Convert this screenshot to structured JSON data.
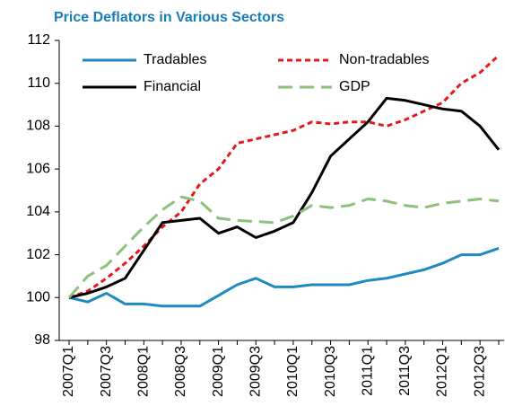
{
  "chart_data": {
    "type": "line",
    "title": "Price Deflators in Various Sectors",
    "categories": [
      "2007Q1",
      null,
      "2007Q3",
      null,
      "2008Q1",
      null,
      "2008Q3",
      null,
      "2009Q1",
      null,
      "2009Q3",
      null,
      "2010Q1",
      null,
      "2010Q3",
      null,
      "2011Q1",
      null,
      "2011Q3",
      null,
      "2012Q1",
      null,
      "2012Q3",
      null
    ],
    "series": [
      {
        "name": "Tradables",
        "color": "#1f8ac0",
        "line_style": "solid",
        "values": [
          100,
          99.8,
          100.2,
          99.7,
          99.7,
          99.6,
          99.6,
          99.6,
          100.1,
          100.6,
          100.9,
          100.5,
          100.5,
          100.6,
          100.6,
          100.6,
          100.8,
          100.9,
          101.1,
          101.3,
          101.6,
          102.0,
          102.0,
          102.3
        ]
      },
      {
        "name": "Non-tradables",
        "color": "#e31a1c",
        "line_style": "dashed",
        "values": [
          100,
          100.3,
          100.9,
          101.6,
          102.4,
          103.3,
          104.0,
          105.3,
          106.0,
          107.2,
          107.4,
          107.6,
          107.8,
          108.2,
          108.1,
          108.2,
          108.2,
          108.0,
          108.3,
          108.7,
          109.1,
          110.0,
          110.5,
          111.3
        ]
      },
      {
        "name": "Financial",
        "color": "#000000",
        "line_style": "solid",
        "values": [
          100,
          100.2,
          100.5,
          100.9,
          102.2,
          103.5,
          103.6,
          103.7,
          103.0,
          103.3,
          102.8,
          103.1,
          103.5,
          104.9,
          106.6,
          107.4,
          108.2,
          109.3,
          109.2,
          109.0,
          108.8,
          108.7,
          108.0,
          106.9
        ]
      },
      {
        "name": "GDP",
        "color": "#8dc07a",
        "line_style": "long-dashed",
        "values": [
          100,
          101.0,
          101.5,
          102.4,
          103.3,
          104.1,
          104.7,
          104.5,
          103.7,
          103.6,
          103.55,
          103.5,
          103.8,
          104.3,
          104.2,
          104.3,
          104.6,
          104.5,
          104.3,
          104.2,
          104.4,
          104.5,
          104.6,
          104.5
        ]
      }
    ],
    "ylim": [
      98,
      112
    ],
    "yticks": [
      98,
      100,
      102,
      104,
      106,
      108,
      110,
      112
    ],
    "grid": false,
    "legend": "top"
  }
}
